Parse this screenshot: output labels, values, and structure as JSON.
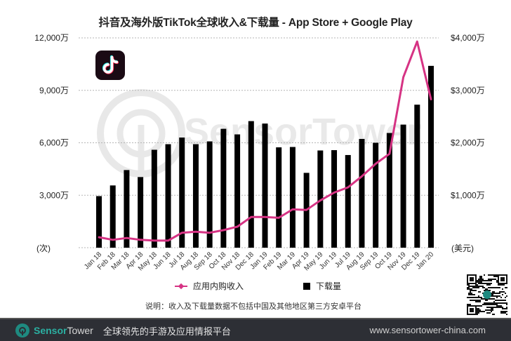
{
  "title": "抖音及海外版TikTok全球收入&下载量 - App Store + Google Play",
  "left_axis": {
    "ticks": [
      "12,000万",
      "9,000万",
      "6,000万",
      "3,000万"
    ],
    "unit_label": "(次)"
  },
  "right_axis": {
    "ticks": [
      "$4,000万",
      "$3,000万",
      "$2,000万",
      "$1,000万"
    ],
    "unit_label": "(美元)"
  },
  "legend": {
    "revenue_label": "应用内购收入",
    "downloads_label": "下载量"
  },
  "note": "说明：收入及下载量数据不包括中国及其他地区第三方安卓平台",
  "footer": {
    "brand_sensor": "Sensor",
    "brand_tower": "Tower",
    "tagline": "全球领先的手游及应用情报平台",
    "url": "www.sensortower-china.com"
  },
  "watermark": "SensorTower",
  "colors": {
    "bar": "#000000",
    "line": "#d63384",
    "grid": "#b5b5b5",
    "footer_bg": "#2d2f35",
    "brand_teal": "#2bb0a2"
  },
  "chart_data": {
    "type": "bar+line",
    "title": "抖音及海外版TikTok全球收入&下载量 - App Store + Google Play",
    "xlabel": "",
    "ylabel_left": "(次)",
    "ylabel_right": "(美元)",
    "ylim_left": [
      0,
      12000
    ],
    "ylim_right": [
      0,
      4000
    ],
    "unit": "万",
    "grid": true,
    "legend_position": "bottom",
    "categories": [
      "Jan 18",
      "Feb 18",
      "Mar 18",
      "Apr 18",
      "May 18",
      "Jun 18",
      "Jul 18",
      "Aug 18",
      "Sep 18",
      "Oct 18",
      "Nov 18",
      "Dec 18",
      "Jan 19",
      "Feb 19",
      "Mar 19",
      "Apr 19",
      "May 19",
      "Jun 19",
      "Jul 19",
      "Aug 19",
      "Sep 19",
      "Oct 19",
      "Nov 19",
      "Dec 19",
      "Jan 20"
    ],
    "series": [
      {
        "name": "下载量",
        "type": "bar",
        "axis": "left",
        "values": [
          2950,
          3560,
          4440,
          4040,
          5600,
          5920,
          6300,
          5920,
          6080,
          6800,
          6480,
          7240,
          7100,
          5740,
          5760,
          4280,
          5560,
          5580,
          5300,
          6220,
          6000,
          6560,
          7040,
          8180,
          10400
        ]
      },
      {
        "name": "应用内购收入",
        "type": "line",
        "axis": "right",
        "values": [
          200,
          150,
          185,
          150,
          135,
          135,
          285,
          305,
          285,
          335,
          400,
          585,
          585,
          570,
          730,
          720,
          900,
          1050,
          1150,
          1360,
          1600,
          1790,
          3250,
          3930,
          2830
        ]
      }
    ]
  }
}
